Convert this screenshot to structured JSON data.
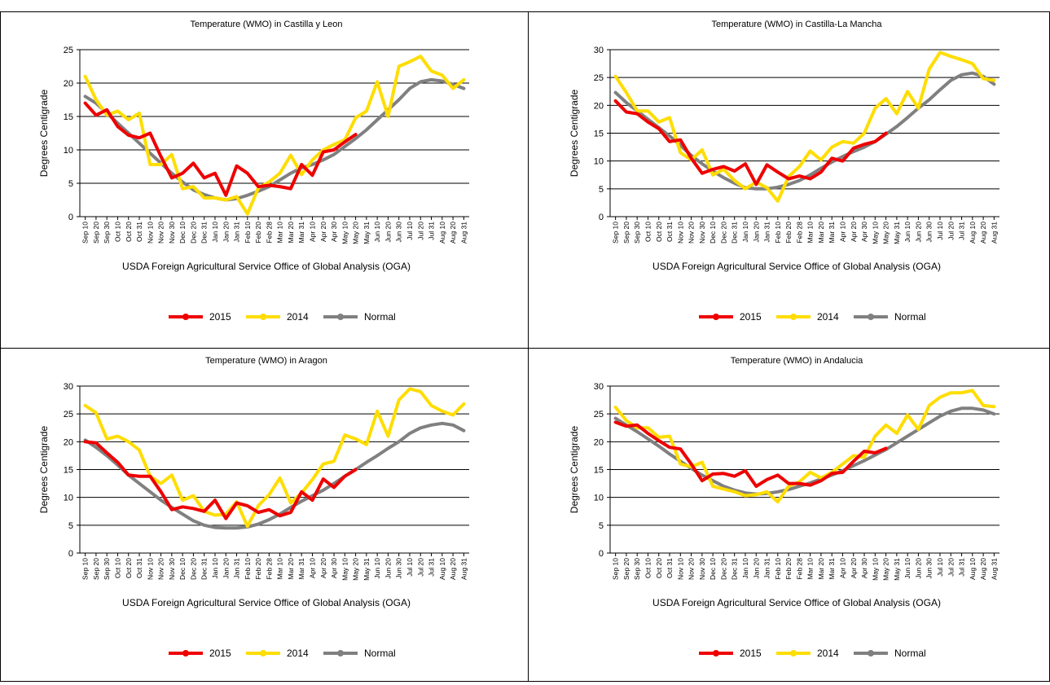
{
  "chart_data": [
    {
      "type": "line",
      "title": "Temperature (WMO) in Castilla y Leon",
      "y_label": "Degrees Centigrade",
      "source": "USDA Foreign Agricultural Service Office of Global Analysis (OGA)",
      "categories": [
        "Sep 10",
        "Sep 20",
        "Sep 30",
        "Oct 10",
        "Oct 20",
        "Oct 31",
        "Nov 10",
        "Nov 20",
        "Nov 30",
        "Dec 10",
        "Dec 20",
        "Dec 31",
        "Jan 10",
        "Jan 20",
        "Jan 31",
        "Feb 10",
        "Feb 20",
        "Feb 28",
        "Mar 10",
        "Mar 20",
        "Mar 31",
        "Apr 10",
        "Apr 20",
        "Apr 30",
        "May 10",
        "May 20",
        "May 31",
        "Jun 10",
        "Jun 20",
        "Jun 30",
        "Jul 10",
        "Jul 20",
        "Jul 31",
        "Aug 10",
        "Aug 20",
        "Aug 31"
      ],
      "series": [
        {
          "name": "2015",
          "color": "#ee0000",
          "values": [
            17,
            15.2,
            16,
            13.5,
            12.2,
            11.8,
            12.5,
            9,
            5.8,
            6.5,
            8,
            5.8,
            6.5,
            3.2,
            7.6,
            6.5,
            4.5,
            4.7,
            4.5,
            4.2,
            7.8,
            6.2,
            9.7,
            10,
            11.2,
            12.3,
            null,
            null,
            null,
            null,
            null,
            null,
            null,
            null,
            null,
            null
          ]
        },
        {
          "name": "2014",
          "color": "#ffdd00",
          "values": [
            21,
            17.5,
            15.2,
            15.8,
            14.5,
            15.5,
            7.8,
            7.8,
            9.3,
            4.2,
            4.5,
            2.8,
            2.8,
            2.5,
            3,
            0.4,
            4.3,
            5.2,
            6.5,
            9.2,
            6.3,
            8.5,
            10,
            10.8,
            11.5,
            14.8,
            15.8,
            20.2,
            15,
            22.5,
            23.2,
            24,
            21.8,
            21.2,
            19.2,
            20.5
          ]
        },
        {
          "name": "Normal",
          "color": "#808080",
          "values": [
            18,
            17,
            15.5,
            14,
            12.5,
            11,
            9.5,
            8,
            6.5,
            5.2,
            4,
            3.3,
            2.8,
            2.5,
            2.7,
            3.2,
            3.8,
            4.5,
            5.5,
            6.5,
            7.3,
            7.8,
            8.5,
            9.3,
            10.5,
            11.7,
            13,
            14.5,
            16,
            17.5,
            19.2,
            20.2,
            20.5,
            20.3,
            19.8,
            19.2
          ]
        }
      ],
      "ylim": [
        0,
        25
      ],
      "yticks": [
        0,
        5,
        10,
        15,
        20,
        25
      ],
      "grid": true
    },
    {
      "type": "line",
      "title": "Temperature (WMO) in Castilla-La Mancha",
      "y_label": "Degrees Centigrade",
      "source": "USDA Foreign Agricultural Service Office of Global Analysis (OGA)",
      "categories": [
        "Sep 10",
        "Sep 20",
        "Sep 30",
        "Oct 10",
        "Oct 20",
        "Oct 31",
        "Nov 10",
        "Nov 20",
        "Nov 30",
        "Dec 10",
        "Dec 20",
        "Dec 31",
        "Jan 10",
        "Jan 20",
        "Jan 31",
        "Feb 10",
        "Feb 20",
        "Feb 28",
        "Mar 10",
        "Mar 20",
        "Mar 31",
        "Apr 10",
        "Apr 20",
        "Apr 30",
        "May 10",
        "May 20",
        "May 31",
        "Jun 10",
        "Jun 20",
        "Jun 30",
        "Jul 10",
        "Jul 20",
        "Jul 31",
        "Aug 10",
        "Aug 20",
        "Aug 31"
      ],
      "series": [
        {
          "name": "2015",
          "color": "#ee0000",
          "values": [
            20.8,
            18.8,
            18.5,
            17,
            15.8,
            13.5,
            13.8,
            10.5,
            7.8,
            8.5,
            9,
            8.2,
            9.5,
            5.8,
            9.3,
            8,
            6.8,
            7.3,
            6.8,
            8,
            10.5,
            10,
            12.3,
            13,
            13.5,
            15,
            null,
            null,
            null,
            null,
            null,
            null,
            null,
            null,
            null,
            null
          ]
        },
        {
          "name": "2014",
          "color": "#ffdd00",
          "values": [
            25.2,
            22.3,
            19,
            19,
            17,
            17.8,
            11.5,
            10.2,
            12,
            7.5,
            8.5,
            6.5,
            5,
            6.2,
            5.2,
            2.8,
            7.2,
            9,
            11.8,
            10.2,
            12.5,
            13.5,
            13.2,
            15,
            19.5,
            21.2,
            18.5,
            22.5,
            19.5,
            26.5,
            29.5,
            28.8,
            28.2,
            27.5,
            24.8,
            24.5
          ]
        },
        {
          "name": "Normal",
          "color": "#808080",
          "values": [
            22.3,
            20.5,
            19,
            17.5,
            16,
            14.5,
            12.8,
            11,
            9.5,
            8.2,
            7,
            6,
            5.2,
            5,
            5,
            5.3,
            5.8,
            6.5,
            7.5,
            8.7,
            9.8,
            10.8,
            11.7,
            12.5,
            13.5,
            14.8,
            16.2,
            17.8,
            19.5,
            21,
            22.8,
            24.5,
            25.5,
            25.8,
            25.2,
            23.8
          ]
        }
      ],
      "ylim": [
        0,
        30
      ],
      "yticks": [
        0,
        5,
        10,
        15,
        20,
        25,
        30
      ],
      "grid": true
    },
    {
      "type": "line",
      "title": "Temperature (WMO) in Aragon",
      "y_label": "Degrees Centigrade",
      "source": "USDA Foreign Agricultural Service Office of Global Analysis (OGA)",
      "categories": [
        "Sep 10",
        "Sep 20",
        "Sep 30",
        "Oct 10",
        "Oct 20",
        "Oct 31",
        "Nov 10",
        "Nov 20",
        "Nov 30",
        "Dec 10",
        "Dec 20",
        "Dec 31",
        "Jan 10",
        "Jan 20",
        "Jan 31",
        "Feb 10",
        "Feb 20",
        "Feb 28",
        "Mar 10",
        "Mar 20",
        "Mar 31",
        "Apr 10",
        "Apr 20",
        "Apr 30",
        "May 10",
        "May 20",
        "May 31",
        "Jun 10",
        "Jun 20",
        "Jun 30",
        "Jul 10",
        "Jul 20",
        "Jul 31",
        "Aug 10",
        "Aug 20",
        "Aug 31"
      ],
      "series": [
        {
          "name": "2015",
          "color": "#ee0000",
          "values": [
            20,
            19.8,
            18,
            16.3,
            14,
            13.8,
            13.8,
            11,
            7.8,
            8.3,
            8,
            7.5,
            9.5,
            6.2,
            9,
            8.5,
            7.3,
            7.8,
            6.7,
            7.3,
            11,
            9.5,
            13.3,
            11.8,
            13.8,
            15,
            null,
            null,
            null,
            null,
            null,
            null,
            null,
            null,
            null,
            null
          ]
        },
        {
          "name": "2014",
          "color": "#ffdd00",
          "values": [
            26.5,
            25.2,
            20.5,
            21,
            20,
            18.5,
            13.8,
            12.5,
            14,
            9.5,
            10.3,
            7.5,
            6.8,
            7,
            9.2,
            4.8,
            8.5,
            10.5,
            13.5,
            9,
            10.8,
            13.2,
            16,
            16.5,
            21.2,
            20.5,
            19.5,
            25.5,
            21,
            27.5,
            29.5,
            29,
            26.5,
            25.5,
            24.8,
            26.8
          ]
        },
        {
          "name": "Normal",
          "color": "#808080",
          "values": [
            20.3,
            19,
            17.5,
            15.8,
            14,
            12.5,
            11,
            9.5,
            8.2,
            7,
            5.8,
            5,
            4.6,
            4.5,
            4.5,
            4.7,
            5.2,
            6,
            7,
            8.2,
            9.3,
            10.3,
            11.3,
            12.5,
            13.8,
            15,
            16.3,
            17.5,
            18.8,
            20,
            21.5,
            22.5,
            23,
            23.3,
            23,
            22
          ]
        }
      ],
      "ylim": [
        0,
        30
      ],
      "yticks": [
        0,
        5,
        10,
        15,
        20,
        25,
        30
      ],
      "grid": true
    },
    {
      "type": "line",
      "title": "Temperature (WMO) in Andalucia",
      "y_label": "Degrees Centigrade",
      "source": "USDA Foreign Agricultural Service Office of Global Analysis (OGA)",
      "categories": [
        "Sep 10",
        "Sep 20",
        "Sep 30",
        "Oct 10",
        "Oct 20",
        "Oct 31",
        "Nov 10",
        "Nov 20",
        "Nov 30",
        "Dec 10",
        "Dec 20",
        "Dec 31",
        "Jan 10",
        "Jan 20",
        "Jan 31",
        "Feb 10",
        "Feb 20",
        "Feb 28",
        "Mar 10",
        "Mar 20",
        "Mar 31",
        "Apr 10",
        "Apr 20",
        "Apr 30",
        "May 10",
        "May 20",
        "May 31",
        "Jun 10",
        "Jun 20",
        "Jun 30",
        "Jul 10",
        "Jul 20",
        "Jul 31",
        "Aug 10",
        "Aug 20",
        "Aug 31"
      ],
      "series": [
        {
          "name": "2015",
          "color": "#ee0000",
          "values": [
            23.5,
            22.8,
            23,
            21.5,
            20.2,
            19,
            18.7,
            16,
            13,
            14.2,
            14.3,
            13.8,
            14.8,
            12,
            13.2,
            14,
            12.5,
            12.5,
            12.2,
            13,
            14.3,
            14.5,
            16.5,
            18.3,
            18,
            18.8,
            null,
            null,
            null,
            null,
            null,
            null,
            null,
            null,
            null,
            null
          ]
        },
        {
          "name": "2014",
          "color": "#ffdd00",
          "values": [
            26.2,
            23.8,
            22.5,
            22.5,
            20.8,
            21,
            16,
            15.5,
            16.3,
            12,
            11.5,
            11,
            10.3,
            10.5,
            11,
            9.2,
            12,
            12.8,
            14.5,
            13.5,
            14.5,
            16,
            17.5,
            17.2,
            21,
            23,
            21.5,
            24.8,
            22.2,
            26.5,
            28,
            28.8,
            28.8,
            29.2,
            26.5,
            26.3
          ]
        },
        {
          "name": "Normal",
          "color": "#808080",
          "values": [
            24.2,
            23,
            21.8,
            20.5,
            19.2,
            17.8,
            16.5,
            15.2,
            14,
            13,
            12,
            11.3,
            10.8,
            10.6,
            10.7,
            11,
            11.4,
            12,
            12.6,
            13.3,
            14,
            14.8,
            15.7,
            16.6,
            17.6,
            18.6,
            19.8,
            21,
            22.2,
            23.4,
            24.6,
            25.5,
            26,
            26,
            25.7,
            25
          ]
        }
      ],
      "ylim": [
        0,
        30
      ],
      "yticks": [
        0,
        5,
        10,
        15,
        20,
        25,
        30
      ],
      "grid": true
    }
  ]
}
